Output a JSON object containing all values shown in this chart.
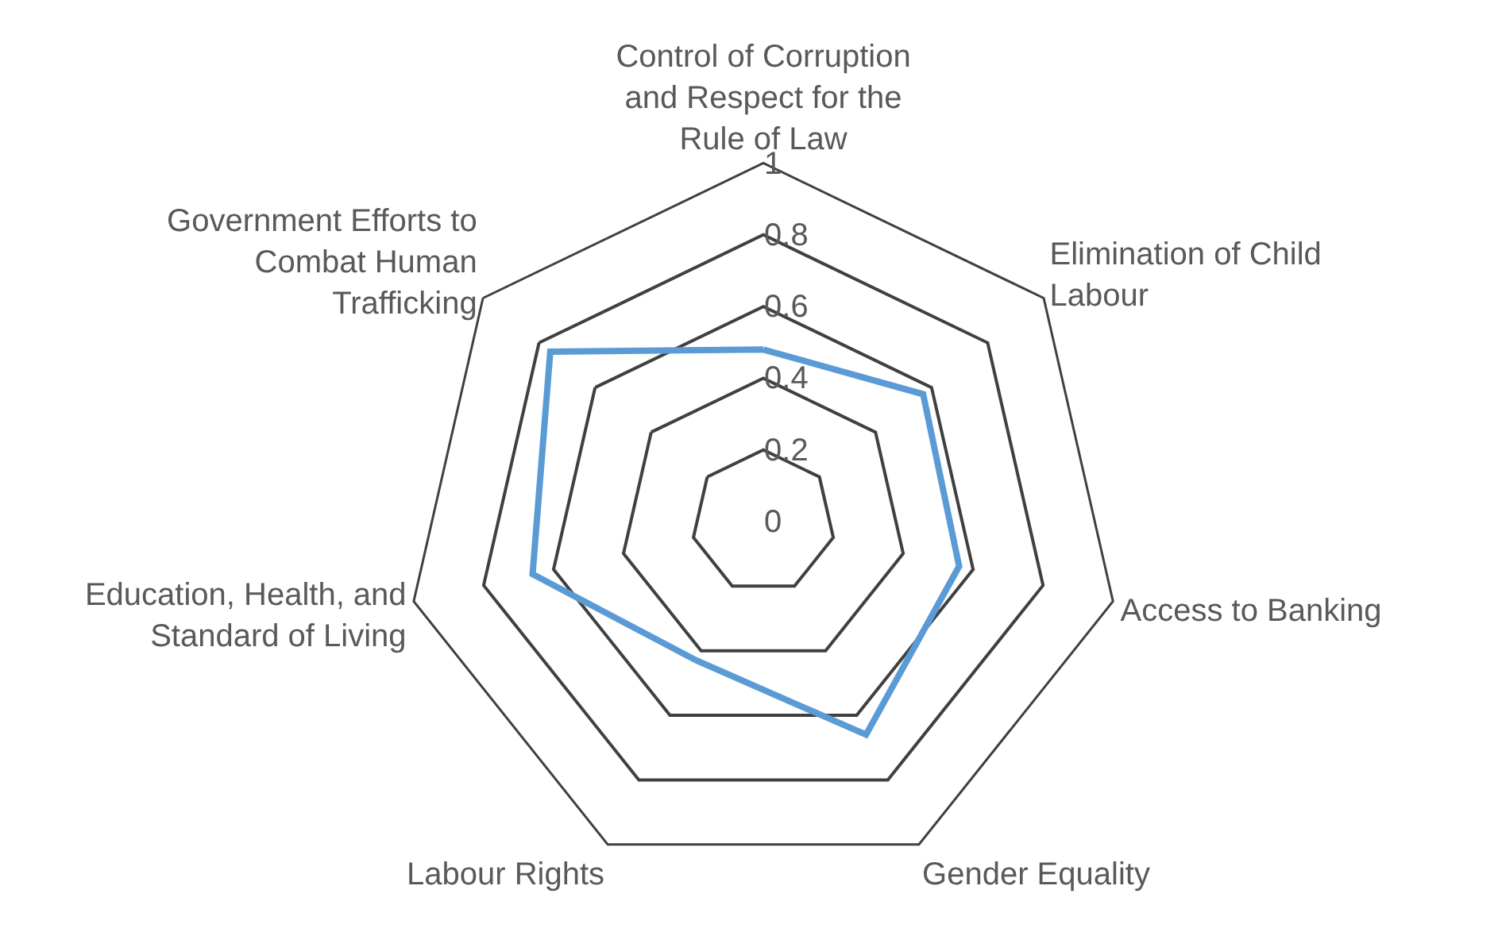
{
  "chart_data": {
    "type": "radar",
    "categories": [
      "Control of Corruption and Respect for the Rule of Law",
      "Elimination of Child Labour",
      "Access to Banking",
      "Gender Equality",
      "Labour Rights",
      "Education, Health, and Standard of Living",
      "Government Efforts to Combat Human Trafficking"
    ],
    "series": [
      {
        "color": "#5b9bd5",
        "values": [
          0.48,
          0.57,
          0.56,
          0.66,
          0.43,
          0.66,
          0.76
        ]
      }
    ],
    "ylim": [
      0,
      1
    ],
    "yticks": [
      0,
      0.2,
      0.4,
      0.6,
      0.8,
      1
    ],
    "grid": true,
    "marker": "none",
    "line_style": "solid"
  }
}
